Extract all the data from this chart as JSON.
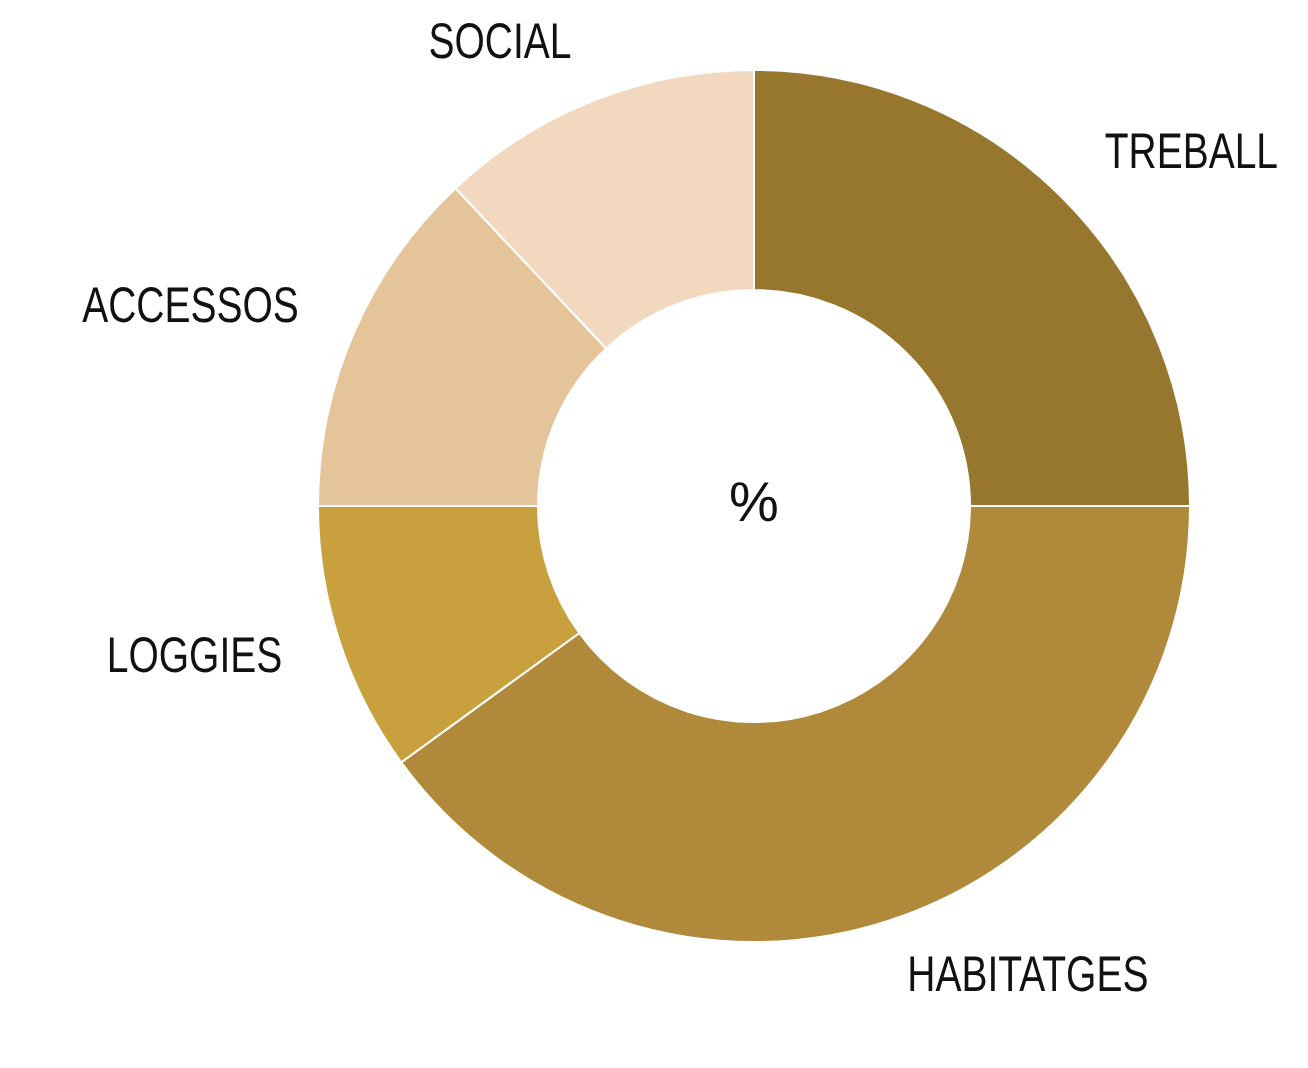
{
  "chart_data": {
    "type": "donut",
    "title": "%",
    "categories": [
      "TREBALL",
      "HABITATGES",
      "LOGGIES",
      "ACCESSOS",
      "SOCIAL"
    ],
    "values": [
      25,
      40,
      10,
      13,
      12
    ],
    "colors": [
      "#97762e",
      "#b08a3a",
      "#c8a03d",
      "#e5c49a",
      "#f1d8bf"
    ]
  }
}
